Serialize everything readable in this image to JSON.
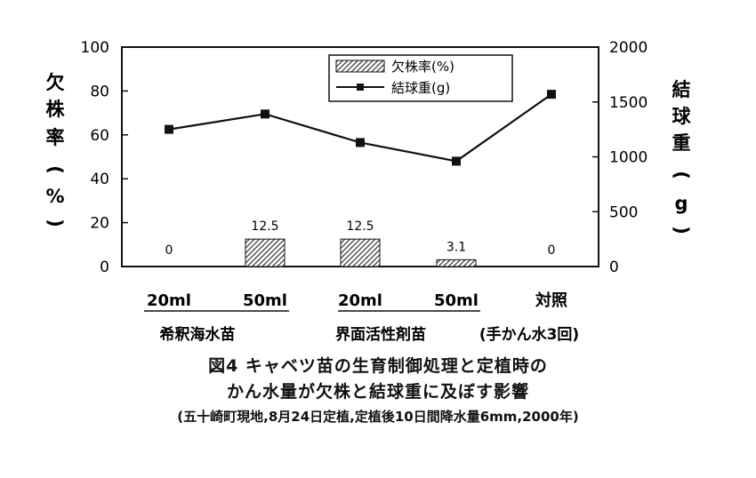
{
  "chart_data": {
    "type": "bar",
    "categories": [
      "20ml",
      "50ml",
      "20ml",
      "50ml",
      "対照"
    ],
    "groups": [
      {
        "label": "希釈海水苗",
        "categories": [
          0,
          1
        ]
      },
      {
        "label": "界面活性剤苗",
        "categories": [
          2,
          3
        ]
      },
      {
        "label": "(手かん水3回)",
        "categories": [
          4
        ]
      }
    ],
    "series": [
      {
        "name": "欠株率(%)",
        "type": "bar",
        "axis": "left",
        "values": [
          0,
          12.5,
          12.5,
          3.1,
          0
        ],
        "data_labels": [
          "0",
          "12.5",
          "12.5",
          "3.1",
          "0"
        ]
      },
      {
        "name": "結球重(g)",
        "type": "line",
        "axis": "right",
        "values": [
          1250,
          1390,
          1130,
          960,
          1570
        ]
      }
    ],
    "y_left": {
      "label": "欠株率(%)",
      "label_chars": [
        "欠",
        "株",
        "率",
        "(",
        "%",
        ")"
      ],
      "range": [
        0,
        100
      ],
      "ticks": [
        "0",
        "20",
        "40",
        "60",
        "80",
        "100"
      ]
    },
    "y_right": {
      "label": "結球重(g)",
      "label_chars": [
        "結",
        "球",
        "重",
        "(",
        "g",
        ")"
      ],
      "range": [
        0,
        2000
      ],
      "ticks": [
        "0",
        "500",
        "1000",
        "1500",
        "2000"
      ]
    },
    "legend": {
      "placement": "top-center",
      "entries": [
        "欠株率(%)",
        "結球重(g)"
      ]
    },
    "grid": false
  },
  "caption": {
    "line1": "図4 キャベツ苗の生育制御処理と定植時の",
    "line2": "かん水量が欠株と結球重に及ぼす影響",
    "line3": "(五十崎町現地,8月24日定植,定植後10日間降水量6mm,2000年)"
  },
  "colors": {
    "axis": "#111111",
    "bar_hatch": "#333333",
    "line": "#111111"
  }
}
